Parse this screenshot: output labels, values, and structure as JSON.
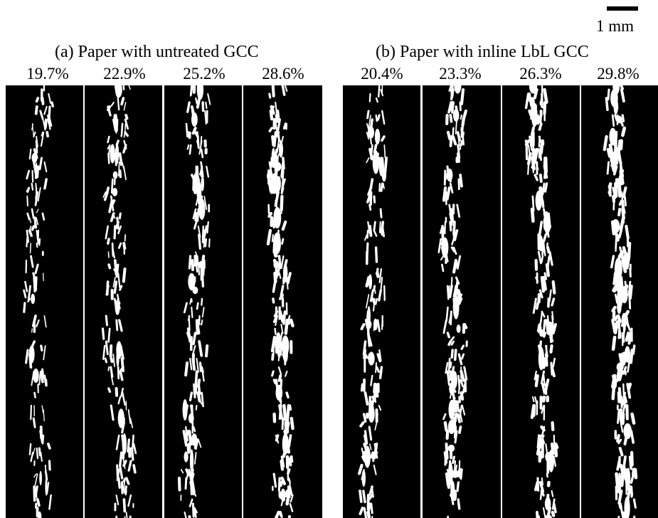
{
  "scale_bar": {
    "label": "1 mm"
  },
  "groups": [
    {
      "title": "(a) Paper with untreated GCC",
      "samples": [
        "19.7%",
        "22.9%",
        "25.2%",
        "28.6%"
      ]
    },
    {
      "title": "(b) Paper with inline LbL GCC",
      "samples": [
        "20.4%",
        "23.3%",
        "26.3%",
        "29.8%"
      ]
    }
  ],
  "colors": {
    "background": "#000000",
    "fibers": "#ffffff"
  }
}
